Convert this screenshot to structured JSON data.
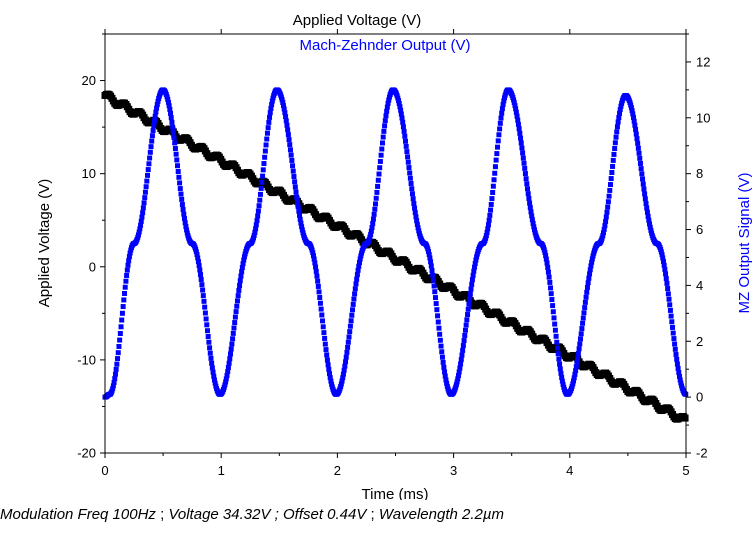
{
  "chart_data": {
    "type": "line",
    "x": {
      "label": "Time (ms)",
      "lim": [
        0,
        5
      ],
      "ticks": [
        0,
        1,
        2,
        3,
        4,
        5
      ]
    },
    "y_left": {
      "label": "Applied Voltage (V)",
      "lim": [
        -20,
        25
      ],
      "ticks": [
        -20,
        -10,
        0,
        10,
        20
      ]
    },
    "y_right": {
      "label": "MZ Output Signal (V)",
      "lim": [
        -2,
        13
      ],
      "ticks": [
        -2,
        0,
        2,
        4,
        6,
        8,
        10,
        12
      ]
    },
    "legend_position": "top-center",
    "grid": false,
    "series": [
      {
        "name": "Applied Voltage (V)",
        "axis": "left",
        "color": "#000000",
        "marker": "square",
        "x": [
          0,
          0.5,
          1.0,
          1.5,
          2.0,
          2.5,
          3.0,
          3.5,
          4.0,
          4.5,
          5.0
        ],
        "y": [
          18.4,
          14.9,
          11.4,
          7.9,
          4.4,
          0.9,
          -2.6,
          -6.1,
          -9.6,
          -13.1,
          -16.6
        ]
      },
      {
        "name": "Mach-Zehnder Output (V)",
        "axis": "right",
        "color": "#0000ff",
        "marker": "square",
        "x": [
          0,
          0.04,
          0.25,
          0.5,
          0.75,
          0.99,
          1.25,
          1.48,
          1.75,
          1.99,
          2.25,
          2.48,
          2.75,
          2.98,
          3.25,
          3.47,
          3.75,
          3.98,
          4.25,
          4.48,
          4.75,
          5.0
        ],
        "y": [
          0.0,
          0.1,
          5.5,
          11.0,
          5.5,
          0.1,
          5.5,
          11.0,
          5.5,
          0.1,
          5.5,
          11.0,
          5.5,
          0.1,
          5.5,
          11.0,
          5.5,
          0.1,
          5.5,
          10.8,
          5.5,
          0.1
        ]
      }
    ]
  },
  "caption": {
    "f1": "Modulation Freq 100Hz",
    "s1": " ; ",
    "f2": "Voltage 34.32V ;",
    "s2": " ",
    "f3": "Offset 0.44V",
    "s3": " ; ",
    "f4": "Wavelength 2.2µm"
  }
}
